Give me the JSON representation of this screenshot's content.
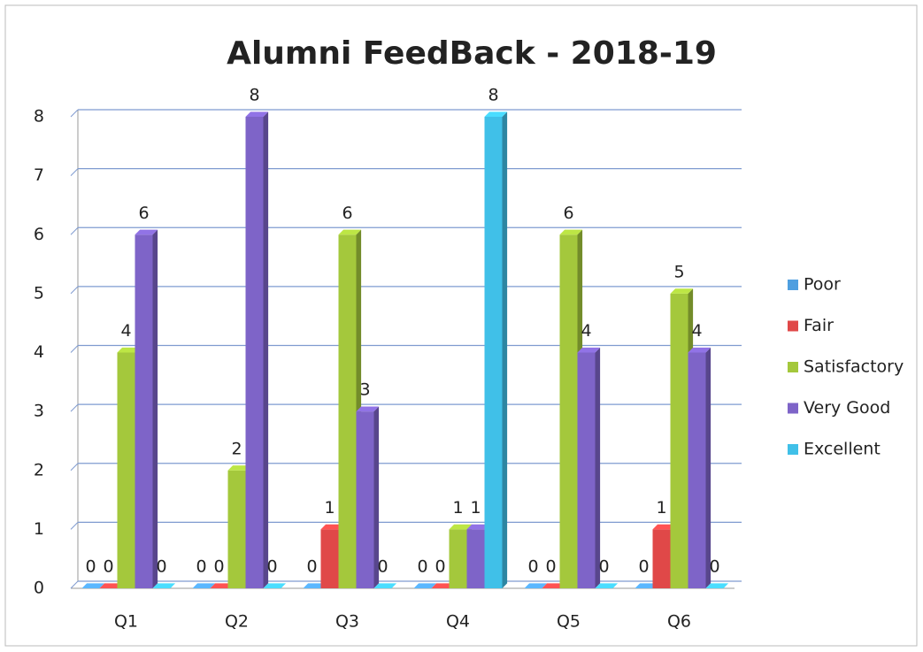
{
  "chart_data": {
    "type": "bar",
    "title": "Alumni FeedBack - 2018-19",
    "categories": [
      "Q1",
      "Q2",
      "Q3",
      "Q4",
      "Q5",
      "Q6"
    ],
    "series": [
      {
        "name": "Poor",
        "color": "#4f9fe0",
        "values": [
          0,
          0,
          0,
          0,
          0,
          0
        ]
      },
      {
        "name": "Fair",
        "color": "#e04848",
        "values": [
          0,
          0,
          1,
          0,
          0,
          1
        ]
      },
      {
        "name": "Satisfactory",
        "color": "#a4c83c",
        "values": [
          4,
          2,
          6,
          1,
          6,
          5
        ]
      },
      {
        "name": "Very Good",
        "color": "#7e64c8",
        "values": [
          6,
          8,
          3,
          1,
          4,
          4
        ]
      },
      {
        "name": "Excellent",
        "color": "#40c0e8",
        "values": [
          0,
          0,
          0,
          8,
          0,
          0
        ]
      }
    ],
    "ylim": [
      0,
      8
    ],
    "yticks": [
      0,
      1,
      2,
      3,
      4,
      5,
      6,
      7,
      8
    ],
    "grid": true,
    "legend": "right"
  }
}
